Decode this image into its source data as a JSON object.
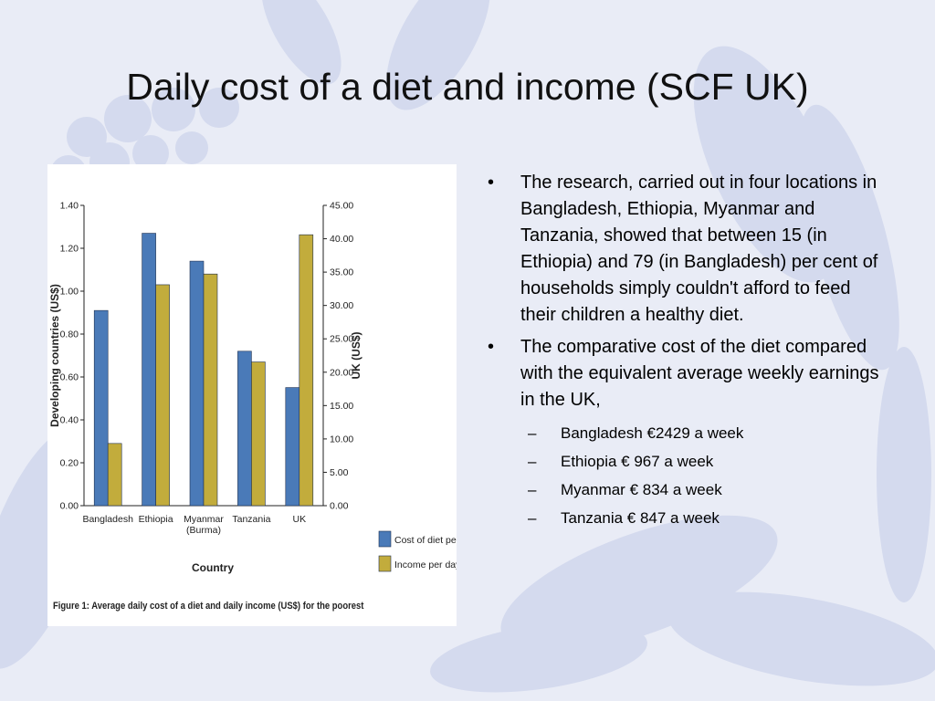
{
  "slide": {
    "title": "Daily cost of a diet and income (SCF UK)"
  },
  "figure": {
    "caption": "Figure 1: Average daily cost of a diet and daily income (US$) for the poorest"
  },
  "chart_data": {
    "type": "bar",
    "xlabel": "Country",
    "ylabel": "Developing countries (US$)",
    "y2label": "UK (US$)",
    "categories": [
      "Bangladesh",
      "Ethiopia",
      "Myanmar (Burma)",
      "Tanzania",
      "UK"
    ],
    "category_lines": [
      [
        "Bangladesh"
      ],
      [
        "Ethiopia"
      ],
      [
        "Myanmar",
        "(Burma)"
      ],
      [
        "Tanzania"
      ],
      [
        "UK"
      ]
    ],
    "ylim": [
      0,
      1.4
    ],
    "y2lim": [
      0,
      45
    ],
    "yticks": [
      "0.00",
      "0.20",
      "0.40",
      "0.60",
      "0.80",
      "1.00",
      "1.20",
      "1.40"
    ],
    "y2ticks": [
      "0.00",
      "5.00",
      "10.00",
      "15.00",
      "20.00",
      "25.00",
      "30.00",
      "35.00",
      "40.00",
      "45.00"
    ],
    "series": [
      {
        "name": "Cost of diet per day",
        "color": "#4a7ab8",
        "values": [
          0.91,
          1.27,
          1.14,
          0.72,
          17.7
        ],
        "axis": [
          "left",
          "left",
          "left",
          "left",
          "right"
        ]
      },
      {
        "name": "Income per day",
        "color": "#c2ac3c",
        "values": [
          0.29,
          1.03,
          1.08,
          0.67,
          40.6
        ],
        "axis": [
          "left",
          "left",
          "left",
          "left",
          "right"
        ]
      }
    ],
    "grid": false,
    "legend": "bottom-right"
  },
  "bullets": [
    {
      "text": "The research, carried out in four locations in Bangladesh, Ethiopia, Myanmar and Tanzania, showed that between 15 (in Ethiopia) and 79 (in Bangladesh) per cent of households simply couldn't afford to feed their children a healthy diet.",
      "sub": []
    },
    {
      "text": "The comparative cost of the diet compared with the equivalent average weekly earnings in the UK,",
      "sub": [
        "Bangladesh €2429 a week",
        "Ethiopia € 967 a week",
        "Myanmar € 834 a week",
        "Tanzania € 847 a week"
      ]
    }
  ],
  "symbols": {
    "bullet": "•",
    "dash": "–"
  },
  "colors": {
    "background": "#e9ecf6",
    "decoration": "#d2d8ee"
  }
}
